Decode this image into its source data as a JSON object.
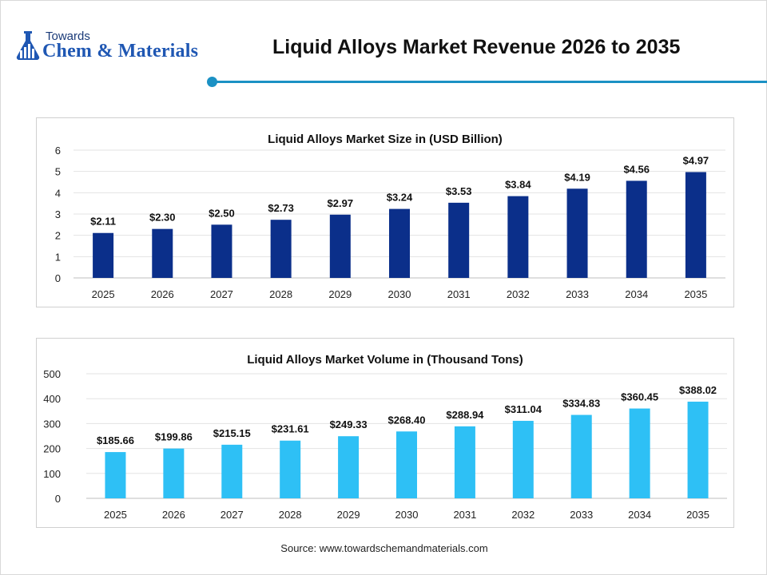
{
  "header": {
    "logo_small": "Towards",
    "logo_main": "Chem & Materials",
    "title": "Liquid Alloys Market Revenue 2026 to 2035",
    "accent_color": "#1b91c4"
  },
  "chart_data": [
    {
      "type": "bar",
      "title": "Liquid Alloys Market Size in (USD Billion)",
      "categories": [
        "2025",
        "2026",
        "2027",
        "2028",
        "2029",
        "2030",
        "2031",
        "2032",
        "2033",
        "2034",
        "2035"
      ],
      "values": [
        2.11,
        2.3,
        2.5,
        2.73,
        2.97,
        3.24,
        3.53,
        3.84,
        4.19,
        4.56,
        4.97
      ],
      "data_labels": [
        "$2.11",
        "$2.30",
        "$2.50",
        "$2.73",
        "$2.97",
        "$3.24",
        "$3.53",
        "$3.84",
        "$4.19",
        "$4.56",
        "$4.97"
      ],
      "ylim": [
        0,
        6
      ],
      "yticks": [
        "0",
        "1",
        "2",
        "3",
        "4",
        "5",
        "6"
      ],
      "ytick_values": [
        0,
        1,
        2,
        3,
        4,
        5,
        6
      ],
      "grid": true,
      "bar_color": "#0b2f8a"
    },
    {
      "type": "bar",
      "title": "Liquid Alloys Market Volume in (Thousand Tons)",
      "categories": [
        "2025",
        "2026",
        "2027",
        "2028",
        "2029",
        "2030",
        "2031",
        "2032",
        "2033",
        "2034",
        "2035"
      ],
      "values": [
        185.66,
        199.86,
        215.15,
        231.61,
        249.33,
        268.4,
        288.94,
        311.04,
        334.83,
        360.45,
        388.02
      ],
      "data_labels": [
        "$185.66",
        "$199.86",
        "$215.15",
        "$231.61",
        "$249.33",
        "$268.40",
        "$288.94",
        "$311.04",
        "$334.83",
        "$360.45",
        "$388.02"
      ],
      "ylim": [
        0,
        500
      ],
      "yticks": [
        "0",
        "100",
        "200",
        "300",
        "400",
        "500"
      ],
      "ytick_values": [
        0,
        100,
        200,
        300,
        400,
        500
      ],
      "grid": true,
      "bar_color": "#2ec0f5"
    }
  ],
  "footer": {
    "source": "Source: www.towardschemandmaterials.com"
  }
}
